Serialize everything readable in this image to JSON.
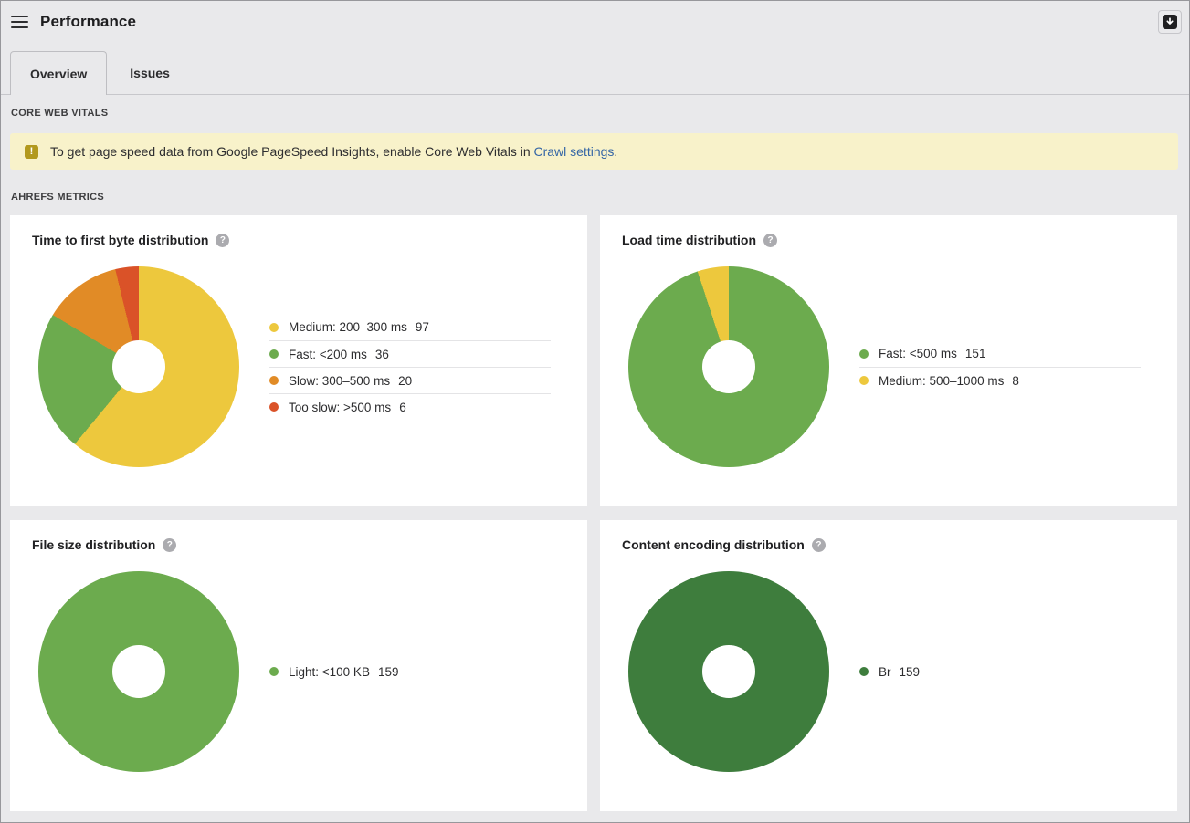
{
  "header": {
    "title": "Performance"
  },
  "tabs": [
    {
      "label": "Overview",
      "active": true
    },
    {
      "label": "Issues",
      "active": false
    }
  ],
  "section_labels": {
    "core_web_vitals": "CORE WEB VITALS",
    "ahrefs_metrics": "AHREFS METRICS"
  },
  "banner": {
    "text": "To get page speed data from Google PageSpeed Insights, enable Core Web Vitals in",
    "link": "Crawl settings",
    "suffix": ".",
    "background": "#f8f2ca",
    "icon_color": "#b2991e",
    "link_color": "#3566a5"
  },
  "icons": {
    "warning": "!",
    "help": "?"
  },
  "chart_data": [
    {
      "type": "pie",
      "donut": true,
      "title": "Time to first byte distribution",
      "legend_position": "right",
      "total": 159,
      "segments": [
        {
          "label": "Medium: 200–300 ms",
          "value": 97,
          "color": "#edc83d"
        },
        {
          "label": "Fast: <200 ms",
          "value": 36,
          "color": "#6cab4e"
        },
        {
          "label": "Slow: 300–500 ms",
          "value": 20,
          "color": "#e18b26"
        },
        {
          "label": "Too slow: >500 ms",
          "value": 6,
          "color": "#da5228"
        }
      ]
    },
    {
      "type": "pie",
      "donut": true,
      "title": "Load time distribution",
      "legend_position": "right",
      "total": 159,
      "segments": [
        {
          "label": "Fast: <500 ms",
          "value": 151,
          "color": "#6cab4e"
        },
        {
          "label": "Medium: 500–1000 ms",
          "value": 8,
          "color": "#edc83d"
        }
      ]
    },
    {
      "type": "pie",
      "donut": true,
      "title": "File size distribution",
      "legend_position": "right",
      "total": 159,
      "segments": [
        {
          "label": "Light: <100 KB",
          "value": 159,
          "color": "#6cab4e"
        }
      ]
    },
    {
      "type": "pie",
      "donut": true,
      "title": "Content encoding distribution",
      "legend_position": "right",
      "total": 159,
      "segments": [
        {
          "label": "Br",
          "value": 159,
          "color": "#3e7d3d"
        }
      ]
    }
  ]
}
